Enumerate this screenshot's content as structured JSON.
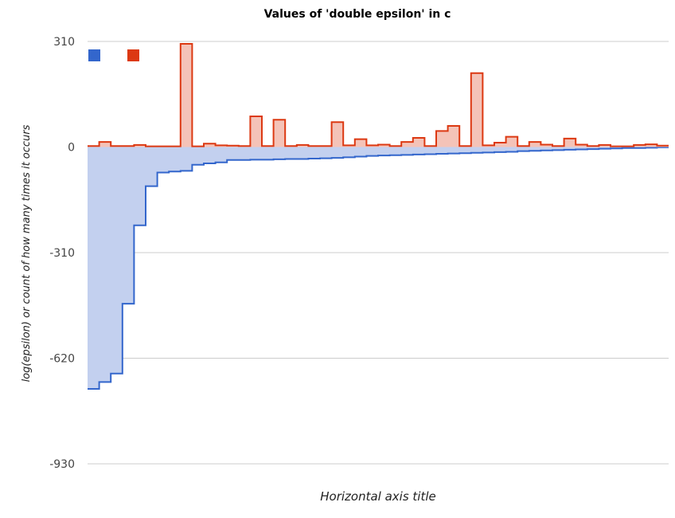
{
  "chart_data": {
    "type": "area",
    "title": "Values of 'double epsilon' in c",
    "xlabel": "Horizontal axis title",
    "ylabel": "log(epsilon) or count of how many times it occurs",
    "ylim": [
      -930,
      310
    ],
    "yticks": [
      310,
      0,
      -310,
      -620,
      -930
    ],
    "ytick_labels": [
      "310",
      "0",
      "-310",
      "-620",
      "-930"
    ],
    "grid": true,
    "legend_position": "top-left",
    "x_count": 50,
    "series": [
      {
        "color": "#3366cc",
        "fill": "#c3d0ef",
        "values": [
          -710,
          -690,
          -665,
          -460,
          -230,
          -115,
          -75,
          -72,
          -70,
          -52,
          -48,
          -45,
          -38,
          -38,
          -37,
          -37,
          -36,
          -35,
          -35,
          -34,
          -33,
          -32,
          -30,
          -28,
          -26,
          -25,
          -24,
          -23,
          -22,
          -21,
          -20,
          -19,
          -18,
          -17,
          -16,
          -15,
          -14,
          -12,
          -11,
          -10,
          -9,
          -8,
          -7,
          -6,
          -5,
          -4,
          -3,
          -3,
          -2,
          -1
        ]
      },
      {
        "color": "#dc3912",
        "fill": "#f4c3b8",
        "values": [
          3,
          15,
          3,
          3,
          6,
          2,
          2,
          2,
          303,
          2,
          10,
          5,
          4,
          3,
          90,
          3,
          80,
          3,
          6,
          3,
          3,
          73,
          5,
          23,
          5,
          7,
          3,
          15,
          27,
          3,
          47,
          62,
          3,
          217,
          5,
          13,
          30,
          3,
          15,
          7,
          3,
          25,
          7,
          3,
          6,
          2,
          2,
          6,
          8,
          4
        ]
      }
    ]
  }
}
